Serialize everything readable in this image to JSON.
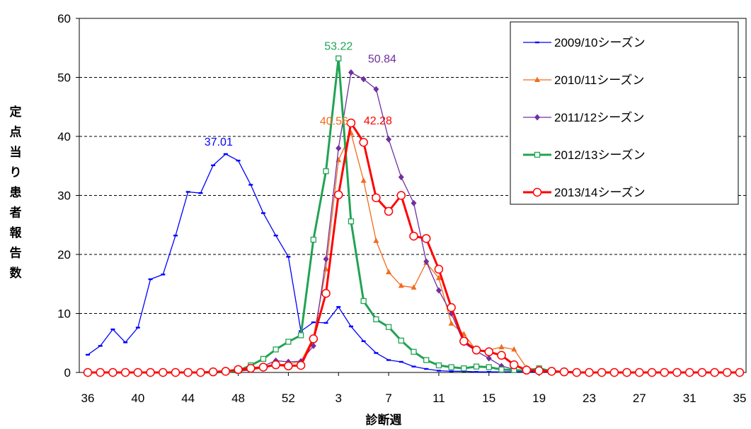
{
  "chart_data": {
    "type": "line",
    "xlabel": "診断週",
    "ylabel": "定点当り患者報告数",
    "ylim": [
      0,
      60
    ],
    "yticks": [
      "0",
      "10",
      "20",
      "30",
      "40",
      "50",
      "60"
    ],
    "x_categories": [
      "36",
      "37",
      "38",
      "39",
      "40",
      "41",
      "42",
      "43",
      "44",
      "45",
      "46",
      "47",
      "48",
      "49",
      "50",
      "51",
      "52",
      "53",
      "1",
      "2",
      "3",
      "4",
      "5",
      "6",
      "7",
      "8",
      "9",
      "10",
      "11",
      "12",
      "13",
      "14",
      "15",
      "16",
      "17",
      "18",
      "19",
      "20",
      "21",
      "22",
      "23",
      "24",
      "25",
      "26",
      "27",
      "28",
      "29",
      "30",
      "31",
      "32",
      "33",
      "34",
      "35"
    ],
    "x_tick_labels": [
      "36",
      "40",
      "44",
      "48",
      "52",
      "3",
      "7",
      "11",
      "15",
      "19",
      "23",
      "27",
      "31",
      "35"
    ],
    "grid": "horizontal dashed",
    "legend_position": "top-right",
    "series": [
      {
        "name": "2009/10シーズン",
        "color": "#0000ff",
        "marker": "dash",
        "line_width": 1.3,
        "peak_label": "37.01",
        "values": [
          3.0,
          4.5,
          7.3,
          5.1,
          7.6,
          15.8,
          16.6,
          23.2,
          30.6,
          30.4,
          35.1,
          37.01,
          35.9,
          31.8,
          27.0,
          23.2,
          19.6,
          7.0,
          8.5,
          8.4,
          11.1,
          7.8,
          5.3,
          3.3,
          2.1,
          1.8,
          1.0,
          0.6,
          0.3,
          0.2,
          0.2,
          0.1,
          0.1,
          0.1,
          0.1,
          0.1,
          0.1,
          0.1,
          0.1,
          0,
          0,
          0,
          0,
          0,
          0,
          0,
          0,
          0,
          0,
          0,
          0,
          0,
          0
        ]
      },
      {
        "name": "2010/11シーズン",
        "color": "#f26b1d",
        "marker": "triangle",
        "line_width": 1.3,
        "peak_label": "40.56",
        "values": [
          0,
          0,
          0,
          0,
          0,
          0,
          0,
          0,
          0,
          0,
          0.1,
          0.1,
          0.2,
          0.4,
          0.8,
          1.2,
          1.5,
          1.8,
          6.0,
          17.5,
          36.0,
          40.56,
          32.5,
          22.3,
          17.0,
          14.7,
          14.4,
          18.6,
          16.0,
          8.3,
          6.5,
          3.7,
          3.8,
          4.3,
          3.9,
          0.8,
          0.4,
          0.2,
          0.2,
          0.1,
          0,
          0,
          0,
          0,
          0,
          0,
          0,
          0,
          0,
          0,
          0,
          0,
          0
        ]
      },
      {
        "name": "2011/12シーズン",
        "color": "#7030a0",
        "marker": "diamond",
        "line_width": 1.3,
        "peak_label": "50.84",
        "values": [
          0,
          0,
          0,
          0,
          0,
          0,
          0,
          0,
          0,
          0,
          0,
          0.1,
          0.2,
          0.5,
          1.1,
          2.0,
          1.8,
          1.9,
          4.5,
          19.2,
          38.0,
          50.84,
          49.7,
          48.0,
          39.5,
          33.1,
          28.7,
          18.8,
          13.9,
          10.0,
          5.0,
          3.6,
          2.4,
          1.1,
          0.5,
          0.3,
          0.2,
          0.1,
          0.1,
          0,
          0,
          0,
          0,
          0,
          0,
          0,
          0,
          0,
          0,
          0,
          0,
          0,
          0
        ]
      },
      {
        "name": "2012/13シーズン",
        "color": "#21a353",
        "marker": "square",
        "line_width": 3,
        "peak_label": "53.22",
        "values": [
          0,
          0,
          0,
          0,
          0,
          0,
          0,
          0,
          0,
          0,
          0,
          0.1,
          0.3,
          1.2,
          2.3,
          3.9,
          5.2,
          6.3,
          22.5,
          34.1,
          53.22,
          25.6,
          12.1,
          9.0,
          7.7,
          5.4,
          3.5,
          2.1,
          1.2,
          0.9,
          0.7,
          1.0,
          0.9,
          0.5,
          0.4,
          0.3,
          0.7,
          0.2,
          0.1,
          0,
          0,
          0,
          0,
          0,
          0,
          0,
          0,
          0,
          0,
          0,
          0,
          0,
          0
        ]
      },
      {
        "name": "2013/14シーズン",
        "color": "#ff0000",
        "marker": "circle",
        "line_width": 3,
        "peak_label": "42.28",
        "values": [
          0,
          0,
          0,
          0,
          0,
          0,
          0,
          0,
          0,
          0,
          0.1,
          0.2,
          0.5,
          0.7,
          0.9,
          1.3,
          1.1,
          1.2,
          5.7,
          13.4,
          30.1,
          42.28,
          39.0,
          29.6,
          27.3,
          30.0,
          23.1,
          22.7,
          17.5,
          11.0,
          5.3,
          3.8,
          3.5,
          2.9,
          1.3,
          0.4,
          0.3,
          0.2,
          0.1,
          0,
          0,
          0,
          0,
          0,
          0,
          0,
          0,
          0,
          0,
          0,
          0,
          0,
          0
        ]
      }
    ]
  }
}
